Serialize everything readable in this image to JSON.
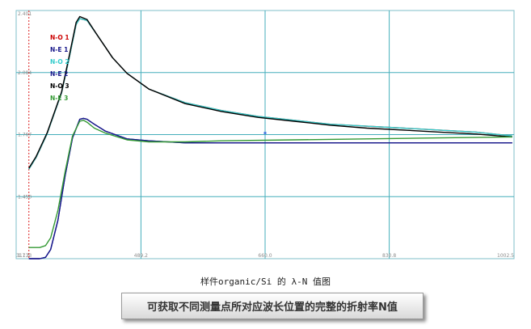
{
  "chart_data": {
    "type": "line",
    "title": "样件organic/Si 的 λ-N 值图",
    "xlabel": "",
    "ylabel": "",
    "xlim": [
      317.5,
      1002.5
    ],
    "ylim": [
      1.133,
      2.401
    ],
    "x_ticks": [
      "317.5",
      "489.2",
      "660.0",
      "830.8",
      "1002.5"
    ],
    "y_ticks": [
      "1.133",
      "1.450",
      "1.767",
      "2.084",
      "2.401"
    ],
    "grid": true,
    "legend_position": "top-left",
    "series": [
      {
        "name": "N-O 1",
        "color": "#cc0000",
        "x": [
          335,
          345,
          360,
          380,
          390,
          400,
          405,
          415,
          430,
          450,
          470,
          500,
          550,
          600,
          650,
          700,
          750,
          800,
          850,
          900,
          950,
          1000
        ],
        "y": [
          1.59,
          1.65,
          1.77,
          1.98,
          2.15,
          2.33,
          2.36,
          2.35,
          2.27,
          2.16,
          2.08,
          2.0,
          1.93,
          1.89,
          1.86,
          1.84,
          1.82,
          1.81,
          1.8,
          1.79,
          1.78,
          1.76
        ]
      },
      {
        "name": "N-E 1",
        "color": "#1a1a8c",
        "x": [
          335,
          350,
          358,
          365,
          375,
          385,
          395,
          405,
          410,
          415,
          425,
          440,
          470,
          500,
          550,
          600,
          700,
          800,
          900,
          1000
        ],
        "y": [
          1.133,
          1.133,
          1.14,
          1.18,
          1.33,
          1.56,
          1.75,
          1.845,
          1.85,
          1.845,
          1.82,
          1.785,
          1.745,
          1.735,
          1.725,
          1.725,
          1.725,
          1.725,
          1.725,
          1.725
        ]
      },
      {
        "name": "N-O 2",
        "color": "#33cccc",
        "x": [
          335,
          345,
          360,
          380,
          390,
          400,
          405,
          415,
          430,
          450,
          470,
          500,
          550,
          600,
          650,
          700,
          750,
          800,
          850,
          900,
          950,
          1000
        ],
        "y": [
          1.59,
          1.65,
          1.77,
          1.98,
          2.15,
          2.33,
          2.36,
          2.35,
          2.27,
          2.16,
          2.08,
          2.0,
          1.93,
          1.89,
          1.86,
          1.84,
          1.82,
          1.81,
          1.8,
          1.79,
          1.78,
          1.76
        ]
      },
      {
        "name": "N-E 2",
        "color": "#1a1a8c",
        "x": [
          335,
          350,
          358,
          365,
          375,
          385,
          395,
          405,
          410,
          415,
          425,
          440,
          470,
          500,
          550,
          600,
          700,
          800,
          900,
          1000
        ],
        "y": [
          1.133,
          1.133,
          1.14,
          1.18,
          1.33,
          1.56,
          1.75,
          1.845,
          1.85,
          1.845,
          1.82,
          1.785,
          1.745,
          1.735,
          1.725,
          1.725,
          1.725,
          1.725,
          1.725,
          1.725
        ]
      },
      {
        "name": "N-O 3",
        "color": "#000000",
        "x": [
          335,
          345,
          360,
          380,
          390,
          400,
          405,
          415,
          430,
          450,
          470,
          500,
          550,
          600,
          650,
          700,
          750,
          800,
          850,
          900,
          950,
          1000
        ],
        "y": [
          1.595,
          1.655,
          1.775,
          1.985,
          2.16,
          2.34,
          2.37,
          2.355,
          2.27,
          2.16,
          2.08,
          2.0,
          1.925,
          1.885,
          1.855,
          1.835,
          1.815,
          1.8,
          1.79,
          1.78,
          1.77,
          1.755
        ]
      },
      {
        "name": "N-E 3",
        "color": "#339933",
        "x": [
          335,
          350,
          358,
          365,
          375,
          385,
          395,
          405,
          410,
          415,
          425,
          440,
          470,
          500,
          550,
          600,
          700,
          800,
          900,
          1000
        ],
        "y": [
          1.19,
          1.19,
          1.2,
          1.24,
          1.38,
          1.58,
          1.76,
          1.835,
          1.84,
          1.83,
          1.8,
          1.775,
          1.74,
          1.73,
          1.73,
          1.735,
          1.74,
          1.745,
          1.75,
          1.755
        ]
      }
    ],
    "marker": {
      "x": 660,
      "y": 1.775,
      "color": "#4a7be0"
    }
  },
  "caption": "可获取不同测量点所对应波长位置的完整的折射率N值"
}
